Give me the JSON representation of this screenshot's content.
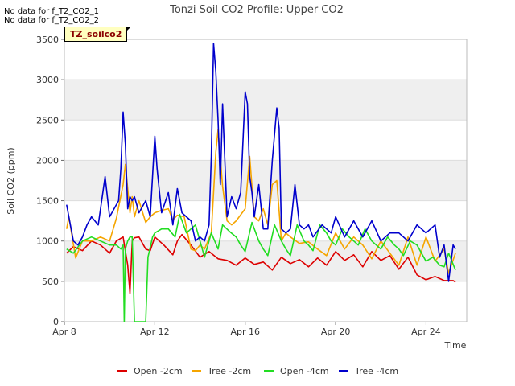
{
  "chart_data": {
    "type": "line",
    "title": "Tonzi Soil CO2 Profile: Upper CO2",
    "xlabel": "Time",
    "ylabel": "Soil CO2 (ppm)",
    "xlim": [
      8,
      25.8
    ],
    "ylim": [
      0,
      3500
    ],
    "x_ticks": [
      8,
      12,
      16,
      20,
      24
    ],
    "x_tick_labels": [
      "Apr 8",
      "Apr 12",
      "Apr 16",
      "Apr 20",
      "Apr 24"
    ],
    "y_ticks": [
      0,
      500,
      1000,
      1500,
      2000,
      2500,
      3000,
      3500
    ],
    "y_tick_labels": [
      "0",
      "500",
      "1000",
      "1500",
      "2000",
      "2500",
      "3000",
      "3500"
    ],
    "shaded_bands": [
      [
        500,
        1000
      ],
      [
        1500,
        2000
      ],
      [
        2500,
        3000
      ]
    ],
    "legend_position": "bottom",
    "notes": [
      "No data for f_T2_CO2_1",
      "No data for f_T2_CO2_2"
    ],
    "site_tag": "TZ_soilco2",
    "series": [
      {
        "name": "Open -2cm",
        "color": "#dd0000",
        "x": [
          8.1,
          8.4,
          8.8,
          9.2,
          9.6,
          10.0,
          10.3,
          10.6,
          10.8,
          10.9,
          11.0,
          11.1,
          11.3,
          11.6,
          11.8,
          12.0,
          12.4,
          12.8,
          13.0,
          13.2,
          13.6,
          14.0,
          14.4,
          14.8,
          15.2,
          15.6,
          16.0,
          16.4,
          16.8,
          17.2,
          17.6,
          18.0,
          18.4,
          18.8,
          19.2,
          19.6,
          20.0,
          20.4,
          20.8,
          21.2,
          21.6,
          22.0,
          22.4,
          22.8,
          23.2,
          23.6,
          24.0,
          24.4,
          24.8,
          25.2,
          25.3
        ],
        "y": [
          850,
          930,
          880,
          1000,
          950,
          850,
          1000,
          1050,
          700,
          350,
          1000,
          1040,
          1050,
          900,
          880,
          1050,
          950,
          830,
          1000,
          1080,
          950,
          800,
          870,
          780,
          760,
          700,
          790,
          710,
          740,
          640,
          800,
          720,
          770,
          680,
          790,
          700,
          870,
          760,
          830,
          680,
          870,
          760,
          820,
          650,
          800,
          580,
          520,
          560,
          510,
          510,
          490
        ]
      },
      {
        "name": "Tree -2cm",
        "color": "#f5a500",
        "x": [
          8.1,
          8.2,
          8.5,
          8.8,
          9.2,
          9.6,
          10.0,
          10.3,
          10.6,
          10.7,
          10.8,
          10.9,
          11.0,
          11.1,
          11.3,
          11.6,
          11.8,
          12.0,
          12.3,
          12.6,
          12.8,
          13.0,
          13.3,
          13.6,
          13.8,
          14.0,
          14.2,
          14.5,
          14.7,
          14.8,
          15.0,
          15.2,
          15.4,
          15.6,
          16.0,
          16.2,
          16.4,
          16.6,
          16.8,
          17.0,
          17.2,
          17.4,
          17.6,
          17.8,
          18.0,
          18.4,
          18.8,
          19.2,
          19.6,
          20.0,
          20.4,
          20.8,
          21.2,
          21.6,
          22.0,
          22.4,
          22.8,
          23.2,
          23.6,
          24.0,
          24.4,
          24.8,
          25.0,
          25.3
        ],
        "y": [
          1150,
          1300,
          790,
          1000,
          1000,
          1050,
          1000,
          1280,
          1700,
          1950,
          1650,
          1350,
          1550,
          1300,
          1500,
          1230,
          1300,
          1350,
          1380,
          1400,
          1260,
          1320,
          1300,
          900,
          880,
          950,
          900,
          1100,
          2100,
          2380,
          1680,
          1250,
          1200,
          1250,
          1400,
          2050,
          1300,
          1250,
          1400,
          1200,
          1700,
          1750,
          1000,
          1100,
          1050,
          970,
          990,
          900,
          820,
          1100,
          900,
          1050,
          950,
          780,
          1000,
          850,
          700,
          1050,
          700,
          1050,
          750,
          900,
          600,
          850
        ]
      },
      {
        "name": "Open -4cm",
        "color": "#22dd22",
        "x": [
          8.1,
          8.4,
          8.8,
          9.2,
          9.6,
          10.0,
          10.3,
          10.5,
          10.6,
          10.65,
          10.7,
          10.8,
          10.9,
          11.0,
          11.1,
          11.3,
          11.4,
          11.5,
          11.6,
          11.7,
          11.9,
          12.0,
          12.3,
          12.6,
          12.9,
          13.1,
          13.4,
          13.8,
          14.2,
          14.5,
          14.8,
          15.0,
          15.3,
          15.6,
          15.8,
          16.0,
          16.3,
          16.6,
          16.8,
          17.0,
          17.3,
          17.6,
          17.8,
          18.0,
          18.3,
          18.6,
          18.8,
          19.0,
          19.3,
          19.6,
          19.8,
          20.0,
          20.3,
          20.6,
          20.8,
          21.0,
          21.3,
          21.6,
          21.8,
          22.0,
          22.3,
          22.6,
          22.8,
          23.0,
          23.3,
          23.6,
          23.8,
          24.0,
          24.3,
          24.6,
          24.8,
          25.0,
          25.3
        ],
        "y": [
          900,
          850,
          1000,
          1050,
          1000,
          950,
          950,
          900,
          950,
          0,
          900,
          1000,
          1050,
          1050,
          0,
          0,
          0,
          0,
          0,
          800,
          1050,
          1100,
          1150,
          1150,
          1050,
          1330,
          1100,
          1200,
          800,
          1100,
          900,
          1200,
          1120,
          1050,
          950,
          870,
          1230,
          1000,
          900,
          820,
          1200,
          1000,
          900,
          820,
          1200,
          1000,
          950,
          880,
          1200,
          1100,
          1000,
          950,
          1150,
          1050,
          1000,
          950,
          1150,
          1000,
          950,
          900,
          1050,
          950,
          900,
          820,
          1000,
          950,
          850,
          750,
          800,
          700,
          680,
          850,
          640
        ]
      },
      {
        "name": "Tree -4cm",
        "color": "#0000cc",
        "x": [
          8.1,
          8.2,
          8.4,
          8.6,
          8.8,
          9.0,
          9.2,
          9.5,
          9.8,
          10.0,
          10.2,
          10.4,
          10.5,
          10.6,
          10.7,
          10.8,
          10.9,
          11.0,
          11.1,
          11.3,
          11.6,
          11.8,
          12.0,
          12.1,
          12.3,
          12.6,
          12.8,
          13.0,
          13.2,
          13.4,
          13.6,
          13.8,
          14.0,
          14.2,
          14.4,
          14.5,
          14.6,
          14.7,
          14.8,
          14.9,
          15.0,
          15.2,
          15.4,
          15.6,
          15.8,
          16.0,
          16.1,
          16.2,
          16.3,
          16.4,
          16.6,
          16.8,
          17.0,
          17.2,
          17.4,
          17.5,
          17.6,
          17.8,
          18.0,
          18.2,
          18.4,
          18.6,
          18.8,
          19.0,
          19.4,
          19.8,
          20.0,
          20.4,
          20.8,
          21.2,
          21.6,
          22.0,
          22.4,
          22.8,
          23.2,
          23.6,
          24.0,
          24.4,
          24.6,
          24.8,
          25.0,
          25.2,
          25.3
        ],
        "y": [
          1450,
          1300,
          1000,
          950,
          1050,
          1200,
          1300,
          1200,
          1800,
          1300,
          1400,
          1500,
          1900,
          2600,
          2200,
          1400,
          1550,
          1500,
          1550,
          1350,
          1500,
          1300,
          2300,
          1900,
          1350,
          1600,
          1200,
          1650,
          1350,
          1300,
          1250,
          1000,
          1050,
          1000,
          1200,
          2050,
          3450,
          3100,
          2500,
          1700,
          2700,
          1300,
          1550,
          1400,
          1600,
          2850,
          2700,
          1800,
          1600,
          1300,
          1700,
          1150,
          1150,
          2000,
          2650,
          2400,
          1150,
          1100,
          1150,
          1700,
          1200,
          1150,
          1200,
          1050,
          1200,
          1100,
          1300,
          1050,
          1250,
          1050,
          1250,
          1000,
          1100,
          1100,
          1000,
          1200,
          1100,
          1200,
          800,
          950,
          500,
          950,
          900
        ]
      }
    ]
  }
}
